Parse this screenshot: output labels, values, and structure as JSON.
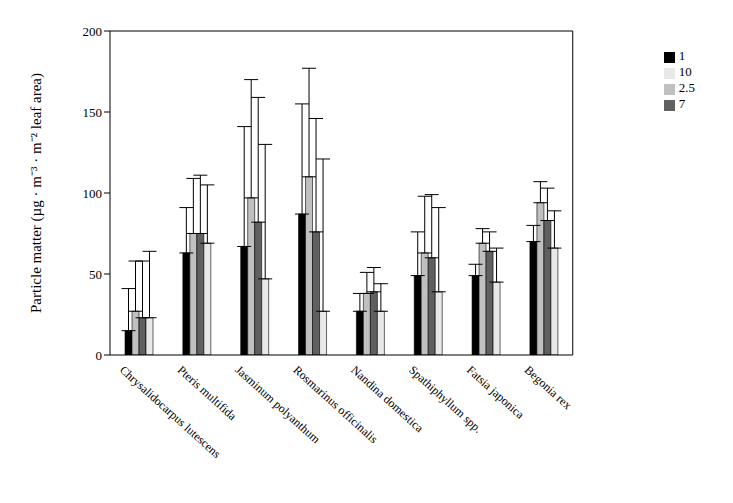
{
  "chart_data": {
    "type": "bar",
    "y_label": "Particle matter (µg · m⁻³ · m⁻² leaf area)",
    "categories": [
      "Chrysalidocarpus lutescens",
      "Pteris multifida",
      "Jasminum polyanthum",
      "Rosmarinus officinalis",
      "Nandina domestica",
      "Spathiphyllum spp.",
      "Fatsia japonica",
      "Begonia rex"
    ],
    "series": [
      {
        "name": "1",
        "color": "#000000",
        "values": [
          15,
          63,
          67,
          87,
          27,
          49,
          49,
          70
        ],
        "errors": [
          26,
          28,
          74,
          68,
          11,
          27,
          7,
          10
        ]
      },
      {
        "name": "2.5",
        "color": "#c0c0c0",
        "values": [
          27,
          75,
          97,
          110,
          38,
          63,
          69,
          94
        ],
        "errors": [
          31,
          34,
          73,
          67,
          13,
          35,
          9,
          13
        ]
      },
      {
        "name": "7",
        "color": "#606060",
        "values": [
          23,
          75,
          82,
          76,
          39,
          60,
          64,
          83
        ],
        "errors": [
          35,
          36,
          77,
          70,
          15,
          39,
          12,
          20
        ]
      },
      {
        "name": "10",
        "color": "#e8e8e8",
        "values": [
          23,
          69,
          47,
          27,
          27,
          39,
          45,
          66
        ],
        "errors": [
          41,
          36,
          83,
          94,
          17,
          52,
          21,
          23
        ]
      }
    ],
    "ylim": [
      0,
      200
    ],
    "yticks": [
      0,
      50,
      100,
      150,
      200
    ],
    "grid": false,
    "legend": "top-right"
  }
}
